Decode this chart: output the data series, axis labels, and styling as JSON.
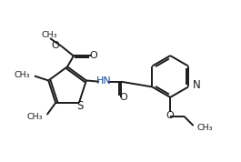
{
  "bg_color": "#ffffff",
  "line_color": "#1a1a1a",
  "N_color": "#1a1a1a",
  "lw": 1.4,
  "figsize": [
    2.65,
    1.78
  ],
  "dpi": 100,
  "xlim": [
    0,
    10.5
  ],
  "ylim": [
    0,
    7.1
  ]
}
